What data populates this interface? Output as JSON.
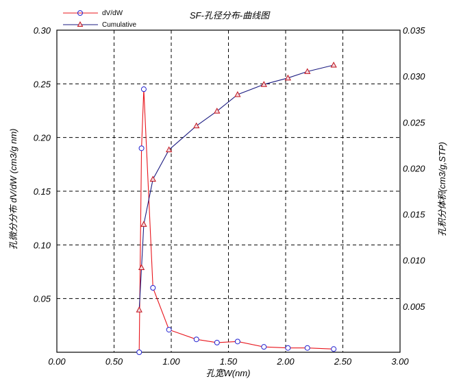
{
  "chart_data": {
    "type": "line",
    "title": "SF-孔径分布-曲线图",
    "xlabel": "孔宽W(nm)",
    "ylabel_left": "孔微分分布 dV/dW (cm3/g nm)",
    "ylabel_right": "孔积分体积(cm3/g,STP)",
    "xlim": [
      0,
      3
    ],
    "ylim_left": [
      0,
      0.3
    ],
    "ylim_right": [
      0,
      0.035
    ],
    "x_ticks": [
      "0.00",
      "0.50",
      "1.00",
      "1.50",
      "2.00",
      "2.50",
      "3.00"
    ],
    "y_left_ticks": [
      "0.05",
      "0.10",
      "0.15",
      "0.20",
      "0.25",
      "0.30"
    ],
    "y_right_ticks": [
      "0.005",
      "0.010",
      "0.015",
      "0.020",
      "0.025",
      "0.030",
      "0.035"
    ],
    "grid": true,
    "legend_position": "top-left",
    "series": [
      {
        "name": "dV/dW",
        "axis": "left",
        "marker": "circle",
        "color": "#e8141b",
        "marker_color": "#2020d0",
        "x": [
          0.72,
          0.74,
          0.76,
          0.84,
          0.98,
          1.22,
          1.4,
          1.58,
          1.81,
          2.02,
          2.19,
          2.42
        ],
        "y": [
          0.0,
          0.19,
          0.245,
          0.06,
          0.021,
          0.012,
          0.009,
          0.01,
          0.005,
          0.004,
          0.004,
          0.003
        ]
      },
      {
        "name": "Cumulative",
        "axis": "right",
        "marker": "triangle",
        "color": "#1a1a80",
        "marker_color": "#c0101a",
        "x": [
          0.72,
          0.74,
          0.76,
          0.84,
          0.98,
          1.22,
          1.4,
          1.58,
          1.81,
          2.02,
          2.19,
          2.42
        ],
        "y": [
          0.0046,
          0.0092,
          0.0139,
          0.0188,
          0.022,
          0.0246,
          0.0262,
          0.028,
          0.0291,
          0.0298,
          0.0305,
          0.0312
        ]
      }
    ]
  }
}
